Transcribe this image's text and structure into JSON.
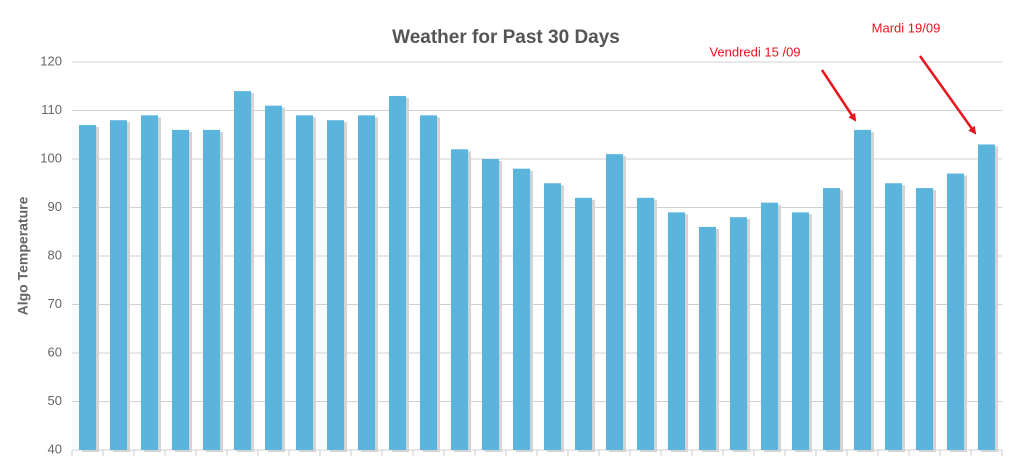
{
  "chart_data": {
    "type": "bar",
    "title": "Weather for Past 30 Days",
    "y_label": "Algo Temperature",
    "values": [
      107,
      108,
      109,
      106,
      106,
      114,
      111,
      109,
      108,
      109,
      113,
      109,
      102,
      100,
      98,
      95,
      92,
      101,
      92,
      89,
      86,
      88,
      91,
      89,
      94,
      106,
      95,
      94,
      97,
      103
    ],
    "color": "#5ab4dc",
    "ylim": [
      40,
      120
    ],
    "yticks": [
      40,
      50,
      60,
      70,
      80,
      90,
      100,
      110,
      120
    ],
    "grid": true,
    "annotations": [
      {
        "text": "Vendredi 15 /09"
      },
      {
        "text": "Mardi 19/09"
      }
    ]
  }
}
